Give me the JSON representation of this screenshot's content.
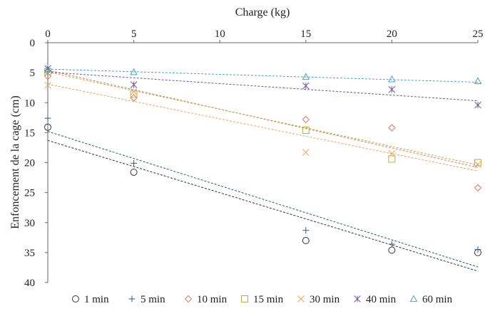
{
  "chart_data": {
    "type": "scatter",
    "xlabel": "Charge  (kg)",
    "ylabel": "Enfoncement de la cage (cm)",
    "x_axis_position": "top",
    "y_axis_inverted": true,
    "xlim": [
      0,
      25
    ],
    "ylim": [
      0,
      40
    ],
    "xticks": [
      0,
      5,
      10,
      15,
      20,
      25
    ],
    "yticks": [
      0,
      5,
      10,
      15,
      20,
      25,
      30,
      35,
      40
    ],
    "grid": false,
    "legend_position": "bottom",
    "trendlines": "linear, dashed, per series",
    "series": [
      {
        "name": "1 min",
        "marker": "circle",
        "color": "#333333",
        "x": [
          0,
          5,
          15,
          20,
          25
        ],
        "y": [
          14.1,
          21.6,
          33.0,
          34.6,
          35.0
        ],
        "trend": [
          16.3,
          38.1
        ]
      },
      {
        "name": "5 min",
        "marker": "plus",
        "color": "#2e5a8a",
        "x": [
          0,
          5,
          15,
          20,
          25
        ],
        "y": [
          12.6,
          20.1,
          31.3,
          33.6,
          34.5
        ],
        "trend": [
          14.8,
          37.4
        ]
      },
      {
        "name": "10 min",
        "marker": "diamond",
        "color": "#e07a5f",
        "x": [
          0,
          5,
          15,
          20,
          25
        ],
        "y": [
          5.6,
          9.2,
          12.8,
          14.2,
          24.2
        ],
        "trend": [
          4.6,
          20.8
        ]
      },
      {
        "name": "15 min",
        "marker": "square",
        "color": "#b5b040",
        "x": [
          0,
          5,
          15,
          20,
          25
        ],
        "y": [
          4.8,
          8.6,
          14.6,
          19.4,
          20.0
        ],
        "trend": [
          4.9,
          20.4
        ]
      },
      {
        "name": "30 min",
        "marker": "x",
        "color": "#f2a15a",
        "x": [
          0,
          5,
          15,
          20,
          25
        ],
        "y": [
          7.1,
          8.2,
          18.3,
          18.5,
          20.3
        ],
        "trend": [
          6.9,
          21.4
        ]
      },
      {
        "name": "40 min",
        "marker": "asterisk",
        "color": "#6e5a9e",
        "x": [
          0,
          5,
          15,
          20,
          25
        ],
        "y": [
          4.3,
          7.0,
          7.2,
          7.8,
          10.4
        ],
        "trend": [
          4.9,
          9.7
        ]
      },
      {
        "name": "60 min",
        "marker": "triangle",
        "color": "#4aa3c9",
        "x": [
          0,
          5,
          15,
          20,
          25
        ],
        "y": [
          4.4,
          4.9,
          5.7,
          6.1,
          6.4
        ],
        "trend": [
          4.4,
          6.6
        ]
      }
    ]
  }
}
